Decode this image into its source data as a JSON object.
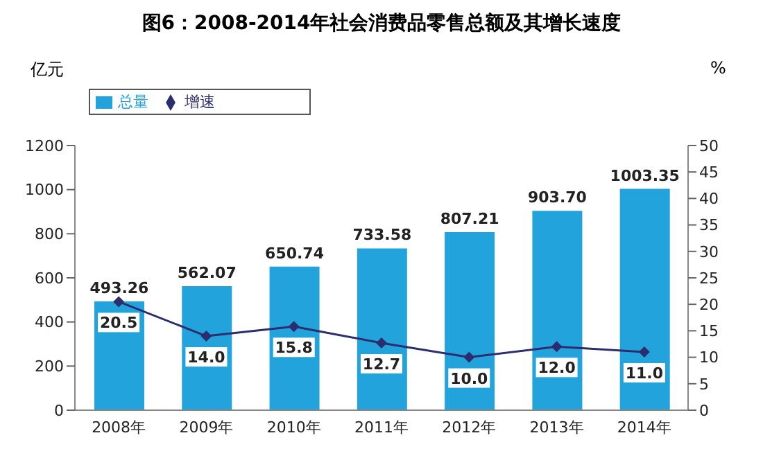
{
  "chart_data": {
    "type": "bar",
    "title": "图6：2008-2014年社会消费品零售总额及其增长速度",
    "ylabel": "亿元",
    "y2label": "%",
    "categories": [
      "2008年",
      "2009年",
      "2010年",
      "2011年",
      "2012年",
      "2013年",
      "2014年"
    ],
    "series": [
      {
        "name": "总量",
        "color": "#22a3dc",
        "values": [
          493.26,
          562.07,
          650.74,
          733.58,
          807.21,
          903.7,
          1003.35
        ],
        "value_labels": [
          "493.26",
          "562.07",
          "650.74",
          "733.58",
          "807.21",
          "903.70",
          "1003.35"
        ]
      },
      {
        "name": "增速",
        "type": "line",
        "axis": "y2",
        "color": "#2b2d6e",
        "marker": "diamond",
        "values": [
          20.5,
          14.0,
          15.8,
          12.7,
          10.0,
          12.0,
          11.0
        ],
        "value_labels": [
          "20.5",
          "14.0",
          "15.8",
          "12.7",
          "10.0",
          "12.0",
          "11.0"
        ]
      }
    ],
    "ylim": [
      0,
      1200
    ],
    "yticks": [
      0,
      200,
      400,
      600,
      800,
      1000,
      1200
    ],
    "y2lim": [
      0,
      50
    ],
    "y2ticks": [
      0,
      5,
      10,
      15,
      20,
      25,
      30,
      35,
      40,
      45,
      50
    ],
    "legend": "top left"
  }
}
